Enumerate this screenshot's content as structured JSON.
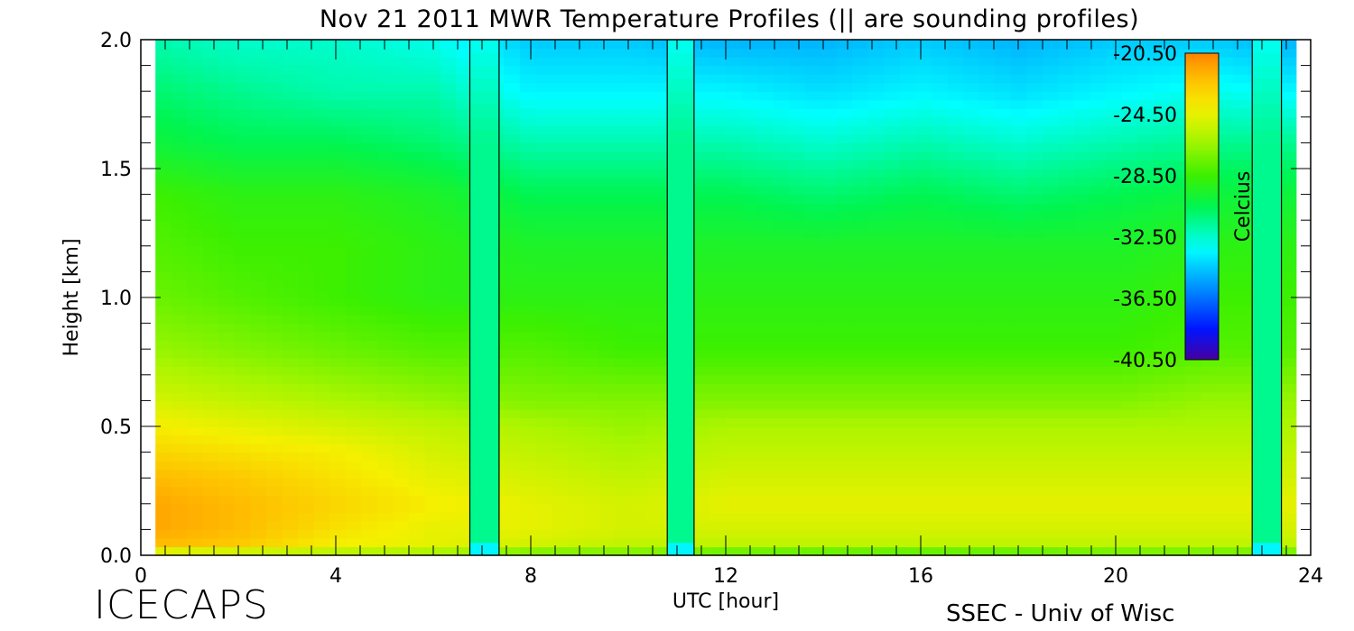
{
  "chart_data": {
    "type": "heatmap",
    "title": "Nov 21 2011 MWR Temperature Profiles (|| are sounding profiles)",
    "xlabel": "UTC [hour]",
    "ylabel": "Height [km]",
    "xlim": [
      0,
      24
    ],
    "ylim": [
      0,
      2
    ],
    "x_ticks": [
      0,
      4,
      8,
      12,
      16,
      20,
      24
    ],
    "y_ticks": [
      0.0,
      0.5,
      1.0,
      1.5,
      2.0
    ],
    "y_tick_labels": [
      "0.0",
      "0.5",
      "1.0",
      "1.5",
      "2.0"
    ],
    "data_x_range": [
      0.3,
      23.7
    ],
    "colorbar": {
      "label": "Celcius",
      "range": [
        -40.5,
        -20.5
      ],
      "tick_labels": [
        "-20.50",
        "-24.50",
        "-28.50",
        "-32.50",
        "-36.50",
        "-40.50"
      ],
      "tick_values": [
        -20.5,
        -24.5,
        -28.5,
        -32.5,
        -36.5,
        -40.5
      ]
    },
    "sounding_profiles": [
      {
        "start": 6.75,
        "end": 7.35
      },
      {
        "start": 10.8,
        "end": 11.35
      },
      {
        "start": 22.8,
        "end": 23.4
      }
    ],
    "sounding_value_base": -31.5,
    "heights_km": [
      0.0,
      0.02,
      0.05,
      0.1,
      0.2,
      0.3,
      0.4,
      0.5,
      0.6,
      0.8,
      1.0,
      1.2,
      1.4,
      1.6,
      1.8,
      2.0
    ],
    "profile_times": [
      0.3,
      2,
      4,
      6,
      8,
      10,
      12,
      14,
      16,
      18,
      20,
      22,
      23.7
    ],
    "profiles": [
      [
        -30.0,
        -23.5,
        -22.0,
        -21.5,
        -21.5,
        -22.0,
        -23.0,
        -24.0,
        -25.0,
        -26.5,
        -27.5,
        -28.0,
        -28.5,
        -30.0,
        -31.0,
        -32.0
      ],
      [
        -30.0,
        -24.0,
        -22.5,
        -22.0,
        -22.0,
        -22.5,
        -23.5,
        -24.5,
        -25.5,
        -27.0,
        -28.0,
        -28.5,
        -29.0,
        -30.5,
        -31.5,
        -32.5
      ],
      [
        -30.5,
        -24.5,
        -24.0,
        -23.5,
        -23.0,
        -23.5,
        -24.0,
        -25.0,
        -26.0,
        -27.5,
        -28.5,
        -28.5,
        -29.0,
        -30.5,
        -32.0,
        -32.5
      ],
      [
        -30.5,
        -25.0,
        -24.5,
        -24.5,
        -24.0,
        -24.5,
        -25.0,
        -25.5,
        -26.5,
        -28.0,
        -29.0,
        -29.0,
        -29.5,
        -31.0,
        -32.0,
        -33.0
      ],
      [
        -31.0,
        -26.0,
        -25.0,
        -24.5,
        -24.5,
        -25.0,
        -25.5,
        -26.0,
        -27.0,
        -28.0,
        -29.0,
        -29.5,
        -30.5,
        -32.0,
        -33.5,
        -34.5
      ],
      [
        -31.0,
        -26.0,
        -25.5,
        -25.0,
        -25.0,
        -25.5,
        -26.0,
        -26.5,
        -27.0,
        -28.5,
        -29.0,
        -29.5,
        -30.5,
        -32.0,
        -33.5,
        -34.5
      ],
      [
        -31.5,
        -26.5,
        -25.5,
        -25.0,
        -24.5,
        -25.0,
        -25.5,
        -26.0,
        -27.0,
        -28.5,
        -29.0,
        -29.5,
        -30.5,
        -32.0,
        -33.5,
        -35.0
      ],
      [
        -32.0,
        -26.5,
        -25.5,
        -25.0,
        -24.5,
        -25.0,
        -25.5,
        -26.0,
        -27.0,
        -28.5,
        -29.0,
        -29.5,
        -31.0,
        -32.5,
        -34.0,
        -35.0
      ],
      [
        -32.5,
        -26.5,
        -25.5,
        -25.0,
        -24.5,
        -25.0,
        -25.5,
        -26.0,
        -27.0,
        -28.5,
        -29.0,
        -29.5,
        -30.5,
        -32.0,
        -33.5,
        -34.5
      ],
      [
        -32.0,
        -26.5,
        -25.5,
        -25.0,
        -24.5,
        -25.0,
        -25.5,
        -26.0,
        -27.0,
        -28.5,
        -29.0,
        -29.5,
        -31.0,
        -32.5,
        -34.0,
        -35.0
      ],
      [
        -32.5,
        -26.0,
        -25.5,
        -25.0,
        -24.5,
        -25.0,
        -25.5,
        -26.0,
        -27.0,
        -28.5,
        -29.0,
        -29.5,
        -30.5,
        -32.0,
        -33.5,
        -34.5
      ],
      [
        -32.5,
        -26.0,
        -25.5,
        -25.0,
        -24.5,
        -25.0,
        -25.5,
        -26.0,
        -26.5,
        -28.0,
        -28.5,
        -29.0,
        -30.0,
        -31.5,
        -33.0,
        -34.5
      ],
      [
        -32.5,
        -26.0,
        -25.5,
        -25.0,
        -24.5,
        -25.0,
        -25.5,
        -26.0,
        -26.5,
        -28.0,
        -28.5,
        -29.0,
        -30.0,
        -31.5,
        -33.5,
        -35.0
      ]
    ]
  },
  "footer": {
    "left": "ICECAPS",
    "right": "SSEC - Univ of Wisc"
  }
}
